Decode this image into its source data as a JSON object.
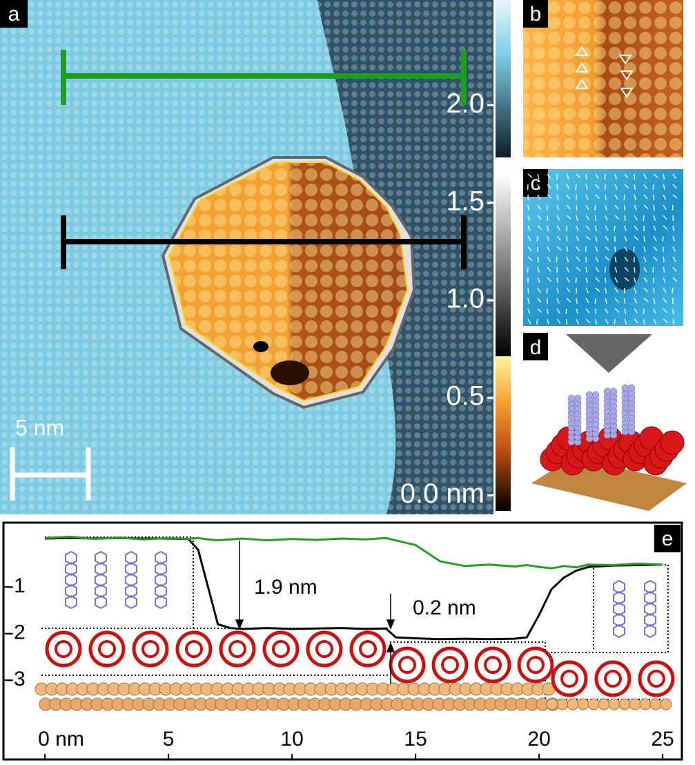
{
  "panel_labels": [
    "a",
    "b",
    "c",
    "d",
    "e"
  ],
  "panel_a": {
    "scale_bar": "5 nm",
    "colorbar": {
      "lim": [
        -0.08,
        2.54
      ],
      "ticks": [
        {
          "value": 0,
          "label": "0.0 nm"
        },
        {
          "value": 0.5,
          "label": "0.5"
        },
        {
          "value": 1,
          "label": "1.0"
        },
        {
          "value": 1.5,
          "label": "1.5"
        },
        {
          "value": 2,
          "label": "2.0"
        }
      ]
    }
  },
  "chart_data": {
    "type": "line",
    "annotations": [
      "1.9 nm",
      "0.2 nm"
    ],
    "x": [
      0,
      1,
      2,
      3,
      4,
      5,
      5.8,
      6.2,
      6.6,
      7,
      7.5,
      8,
      9,
      10,
      11,
      12,
      13,
      13.8,
      14.2,
      15,
      16,
      17,
      18,
      19,
      19.5,
      20,
      20.5,
      21,
      21.5,
      22,
      23,
      24,
      25
    ],
    "series": [
      {
        "color": "#000000",
        "values": [
          0.04,
          0.05,
          0.04,
          0.05,
          0.04,
          0.04,
          0.03,
          -0.2,
          -1.0,
          -1.8,
          -1.88,
          -1.9,
          -1.88,
          -1.9,
          -1.89,
          -1.88,
          -1.9,
          -1.89,
          -2.08,
          -2.1,
          -2.12,
          -2.11,
          -2.12,
          -2.11,
          -2.08,
          -1.6,
          -1.05,
          -0.8,
          -0.65,
          -0.57,
          -0.54,
          -0.53,
          -0.52
        ]
      },
      {
        "color": "#22a020",
        "values": [
          0.05,
          0.08,
          0.03,
          0.06,
          0.02,
          0.05,
          0.03,
          0.05,
          0.02,
          0.0,
          0.02,
          0.04,
          0.0,
          0.03,
          0.01,
          0.04,
          0.02,
          0.05,
          0.0,
          -0.1,
          -0.45,
          -0.55,
          -0.52,
          -0.56,
          -0.53,
          -0.57,
          -0.6,
          -0.55,
          -0.58,
          -0.52,
          -0.53,
          -0.5,
          -0.52
        ]
      }
    ],
    "xlim": [
      -1.68,
      25.78
    ],
    "ylim": [
      -4.7,
      0.38
    ],
    "xticks": [
      {
        "value": 0,
        "label": "0 nm"
      },
      5,
      10,
      15,
      20,
      25
    ],
    "yticks": [
      -1,
      -2,
      -3
    ]
  }
}
